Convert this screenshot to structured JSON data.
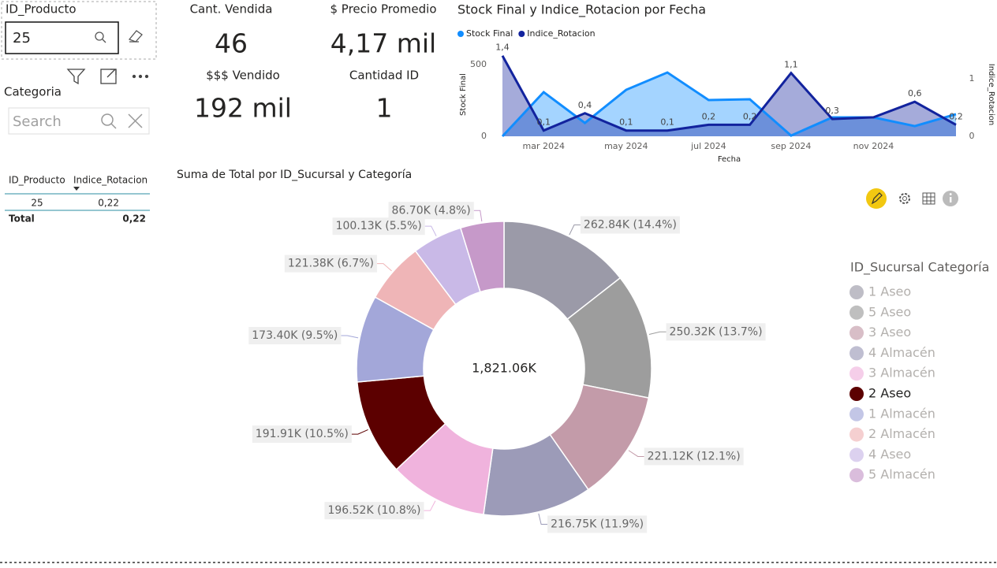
{
  "slicers": [
    {
      "title": "ID_Producto",
      "value": "25"
    },
    {
      "title": "Categoria",
      "placeholder": "Search"
    }
  ],
  "cards": [
    {
      "label": "Cant. Vendida",
      "value": "46"
    },
    {
      "label": "$ Precio Promedio",
      "value": "4,17 mil"
    },
    {
      "label": "$$$ Vendido",
      "value": "192 mil"
    },
    {
      "label": "Cantidad ID",
      "value": "1"
    }
  ],
  "table": {
    "headers": [
      "ID_Producto",
      "Indice_Rotacion"
    ],
    "rows": [
      [
        "25",
        "0,22"
      ]
    ],
    "total": [
      "Total",
      "0,22"
    ]
  },
  "chart_data": [
    {
      "type": "line",
      "title": "Stock Final y Indice_Rotacion por Fecha",
      "x": [
        "2024-02",
        "2024-03",
        "2024-04",
        "2024-05",
        "2024-06",
        "2024-07",
        "2024-08",
        "2024-09",
        "2024-10",
        "2024-11",
        "2024-12",
        "2025-01"
      ],
      "xticks": [
        {
          "value": "2024-03",
          "label": "mar 2024"
        },
        {
          "value": "2024-05",
          "label": "may 2024"
        },
        {
          "value": "2024-07",
          "label": "jul 2024"
        },
        {
          "value": "2024-09",
          "label": "sep 2024"
        },
        {
          "value": "2024-11",
          "label": "nov 2024"
        }
      ],
      "xlabel": "Fecha",
      "ylabel": "Stock Final",
      "y2label": "Indice_Rotacion",
      "ylim": [
        0,
        566
      ],
      "yticks": [
        0,
        500
      ],
      "y2lim": [
        0,
        1.41
      ],
      "y2ticks": [
        0,
        1
      ],
      "legend": "top-left",
      "series": [
        {
          "name": "Stock Final",
          "color": "#118DFF",
          "values": [
            0,
            308,
            93,
            324,
            445,
            253,
            258,
            5,
            132,
            132,
            71,
            154
          ]
        },
        {
          "name": "Indice_Rotacion",
          "color": "#12239E",
          "axis": "y2",
          "values": [
            1.4,
            0.1,
            0.4,
            0.1,
            0.1,
            0.2,
            0.2,
            1.1,
            0.3,
            0.33,
            0.6,
            0.2
          ],
          "value_labels": [
            "1,4",
            "0,1",
            "0,4",
            "0,1",
            "0,1",
            "0,2",
            "0,2",
            "1,1",
            "0,3",
            null,
            "0,6",
            "0,2"
          ]
        }
      ]
    },
    {
      "type": "donut",
      "title": "Suma de Total por ID_Sucursal y Categoría",
      "center_label": "1,821.06K",
      "legend_title": "ID_Sucursal Categoría",
      "categories": [
        "1 Aseo",
        "5 Aseo",
        "3 Aseo",
        "4 Almacén",
        "3 Almacén",
        "2 Aseo",
        "1 Almacén",
        "2 Almacén",
        "4 Aseo",
        "5 Almacén"
      ],
      "values": [
        262840,
        250320,
        221120,
        216750,
        196520,
        191910,
        173400,
        121380,
        100130,
        86700
      ],
      "value_labels": [
        "262.84K (14.4%)",
        "250.32K (13.7%)",
        "221.12K (12.1%)",
        "216.75K (11.9%)",
        "196.52K (10.8%)",
        "191.91K (10.5%)",
        "173.40K (9.5%)",
        "121.38K (6.7%)",
        "100.13K (5.5%)",
        "86.70K (4.8%)"
      ],
      "colors": [
        "#9b9aa8",
        "#9d9d9d",
        "#c39ba9",
        "#9c9bb8",
        "#f0b3dd",
        "#5c0000",
        "#a3a7d9",
        "#efb5b7",
        "#c9b9e7",
        "#c699c9"
      ],
      "highlight": 5
    }
  ]
}
